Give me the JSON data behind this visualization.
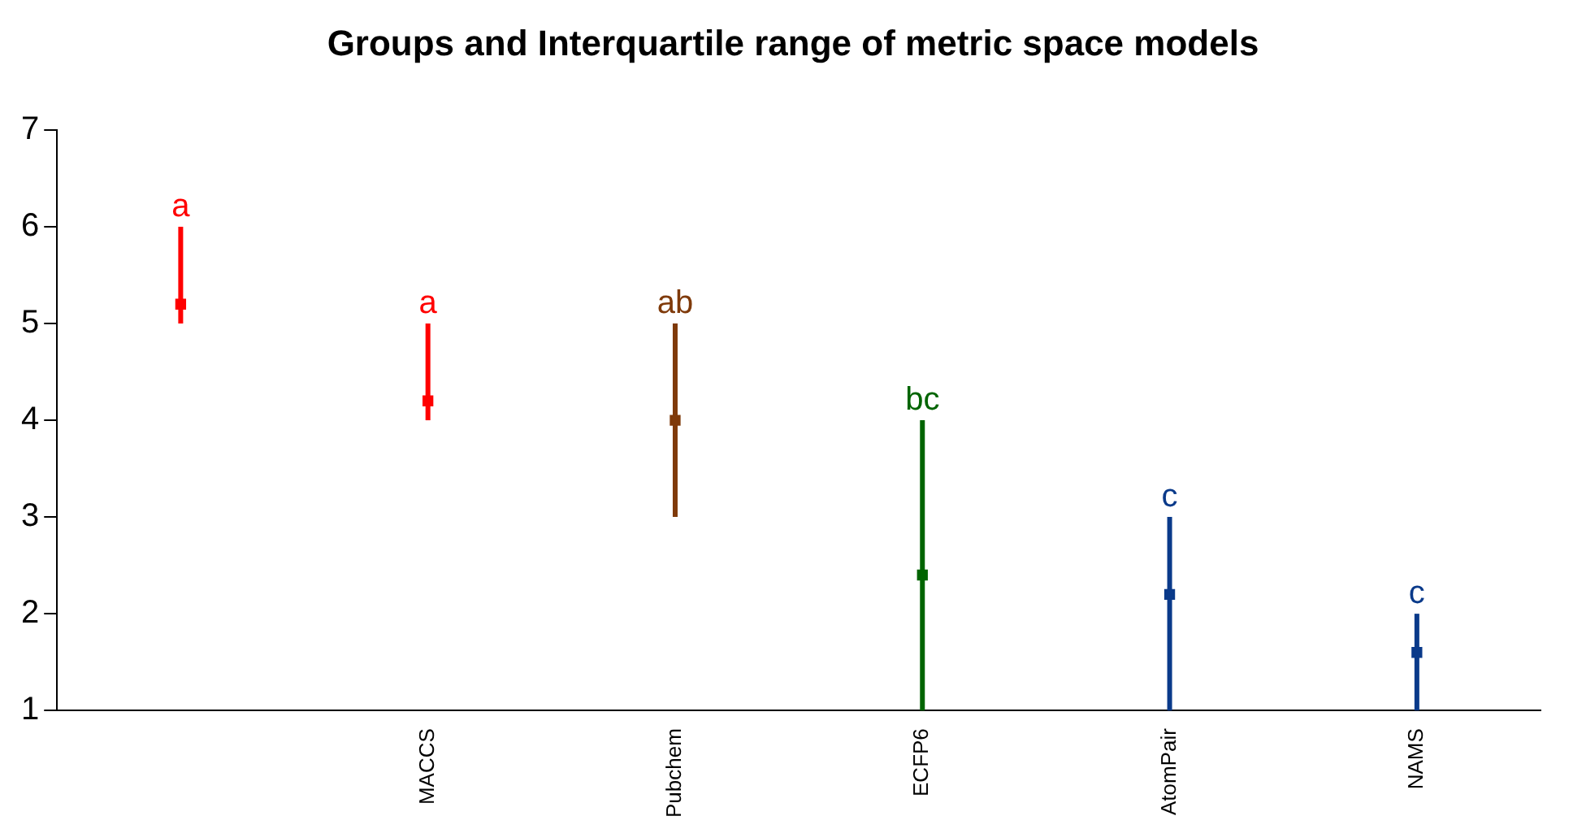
{
  "chart_data": {
    "type": "scatter",
    "title": "Groups and Interquartile range of metric space models",
    "categories": [
      null,
      "MACCS",
      "Pubchem",
      "ECFP6",
      "AtomPair",
      "NAMS"
    ],
    "values": [
      5.2,
      4.2,
      4.0,
      2.4,
      2.2,
      1.6
    ],
    "errors": [
      [
        5.0,
        6.0
      ],
      [
        4.0,
        5.0
      ],
      [
        3.0,
        5.0
      ],
      [
        1.0,
        4.0
      ],
      [
        1.0,
        3.0
      ],
      [
        1.0,
        2.0
      ]
    ],
    "colors": [
      "#ff0000",
      "#ff0000",
      "#7f3a0a",
      "#006400",
      "#0a3a8a",
      "#0a3a8a"
    ],
    "annotations": [
      {
        "text": "a",
        "y": 6.0
      },
      {
        "text": "a",
        "x": "MACCS",
        "y": 5.0
      },
      {
        "text": "ab",
        "x": "Pubchem",
        "y": 5.0
      },
      {
        "text": "bc",
        "x": "ECFP6",
        "y": 4.0
      },
      {
        "text": "c",
        "x": "AtomPair",
        "y": 3.0
      },
      {
        "text": "c",
        "x": "NAMS",
        "y": 2.0
      }
    ],
    "ylim": [
      1,
      7
    ],
    "yticks": [
      1,
      2,
      3,
      4,
      5,
      6,
      7
    ],
    "grid": false,
    "legend": false,
    "marker": "square"
  }
}
